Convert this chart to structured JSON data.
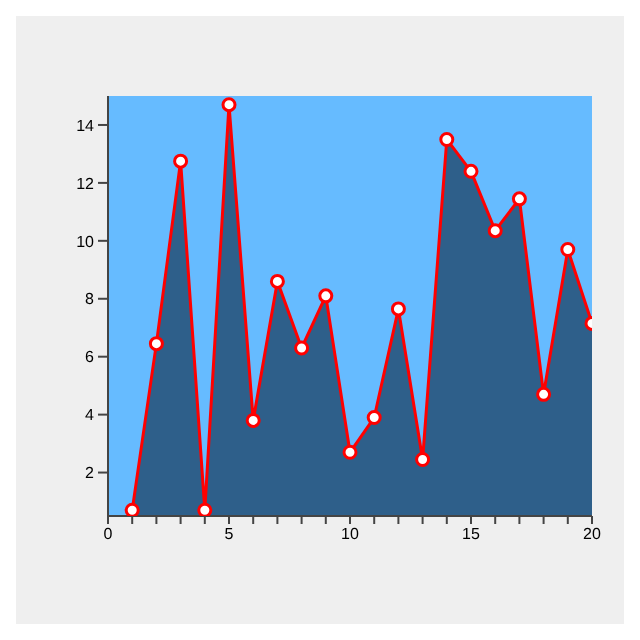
{
  "chart_data": {
    "type": "area",
    "x": [
      1,
      2,
      3,
      4,
      5,
      6,
      7,
      8,
      9,
      10,
      11,
      12,
      13,
      14,
      15,
      16,
      17,
      18,
      19,
      20
    ],
    "series": [
      {
        "color": "#2e5f8a",
        "marker": "none",
        "values": [
          0.7,
          6.45,
          12.75,
          0.7,
          14.7,
          3.8,
          8.6,
          6.3,
          8.1,
          2.7,
          3.9,
          7.65,
          2.45,
          13.5,
          12.4,
          10.35,
          11.45,
          4.7,
          9.7,
          7.15
        ]
      },
      {
        "type": "line",
        "color": "#ff0000",
        "marker": "circle",
        "values": [
          0.7,
          6.45,
          12.75,
          0.7,
          14.7,
          3.8,
          8.6,
          6.3,
          8.1,
          2.7,
          3.9,
          7.65,
          2.45,
          13.5,
          12.4,
          10.35,
          11.45,
          4.7,
          9.7,
          7.15
        ]
      }
    ],
    "xlim": [
      0,
      20
    ],
    "ylim": [
      0.5,
      15
    ],
    "xticks": [
      0,
      {
        "value": 1,
        "label": null
      },
      {
        "value": 2,
        "label": null
      },
      {
        "value": 3,
        "label": null
      },
      {
        "value": 4,
        "label": null
      },
      5,
      {
        "value": 6,
        "label": null
      },
      {
        "value": 7,
        "label": null
      },
      {
        "value": 8,
        "label": null
      },
      {
        "value": 9,
        "label": null
      },
      10,
      {
        "value": 11,
        "label": null
      },
      {
        "value": 12,
        "label": null
      },
      {
        "value": 13,
        "label": null
      },
      {
        "value": 14,
        "label": null
      },
      15,
      {
        "value": 16,
        "label": null
      },
      {
        "value": 17,
        "label": null
      },
      {
        "value": 18,
        "label": null
      },
      {
        "value": 19,
        "label": null
      },
      20
    ],
    "yticks": [
      2,
      4,
      6,
      8,
      10,
      12,
      14
    ],
    "grid": false
  }
}
